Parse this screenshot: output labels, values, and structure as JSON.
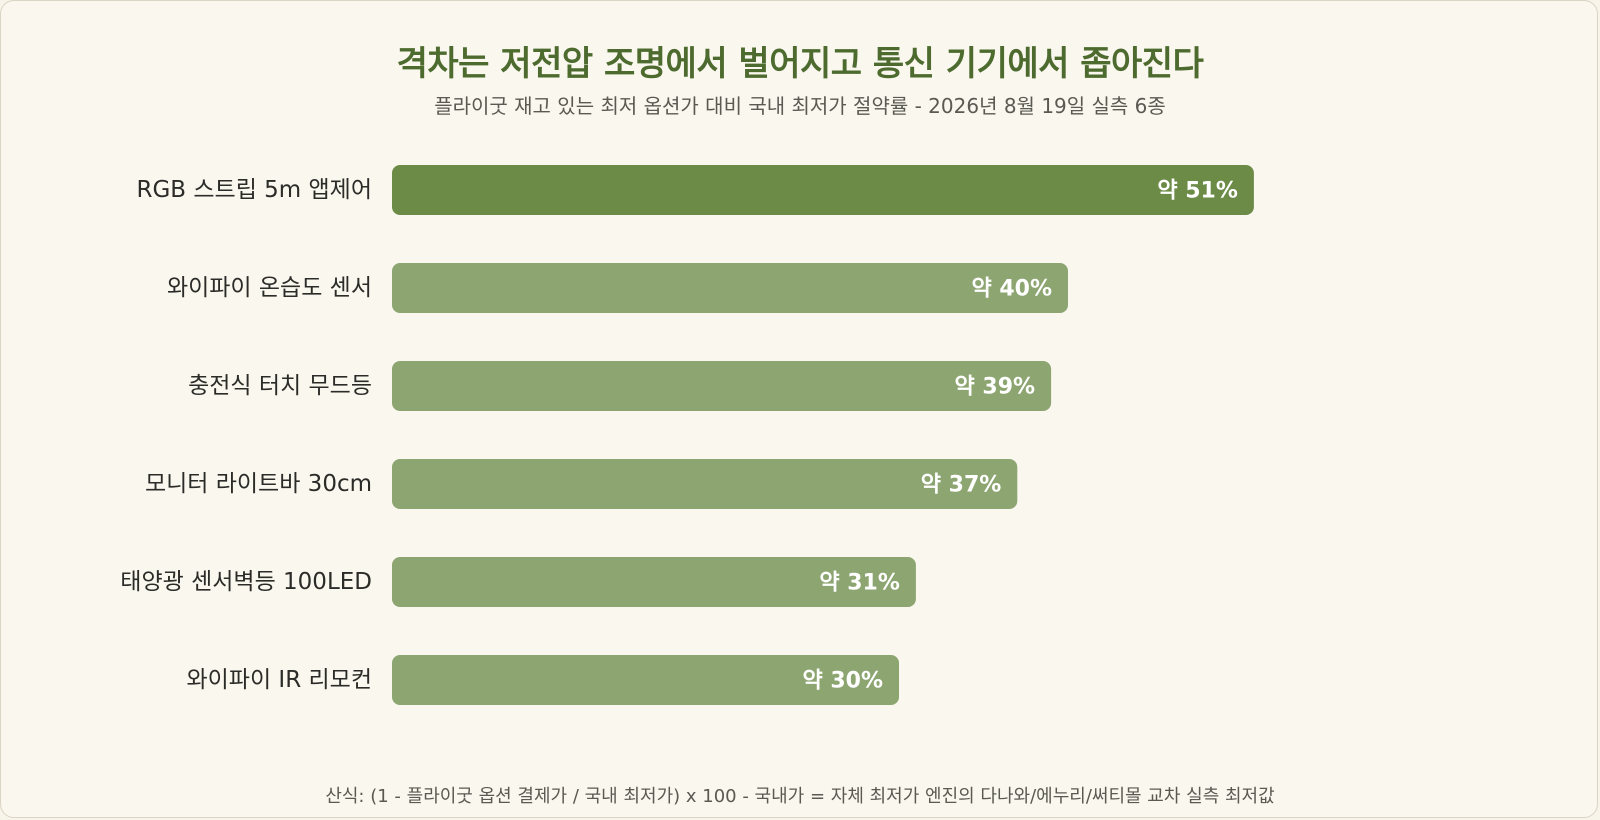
{
  "title": "격차는 저전압 조명에서 벌어지고 통신 기기에서 좁아진다",
  "subtitle": "플라이굿 재고 있는 최저 옵션가 대비 국내 최저가 절약률 - 2026년 8월 19일 실측 6종",
  "footnote": "산식: (1 - 플라이굿 옵션 결제가 / 국내 최저가) x 100 - 국내가 = 자체 최저가 엔진의 다나와/에누리/써티몰 교차 실측 최저값",
  "colors": {
    "highlight": "#6b8b47",
    "normal": "#8ca571",
    "title": "#4e6b2f",
    "background": "#faf7ee"
  },
  "chart_data": {
    "type": "bar",
    "orientation": "horizontal",
    "title": "격차는 저전압 조명에서 벌어지고 통신 기기에서 좁아진다",
    "subtitle": "플라이굿 재고 있는 최저 옵션가 대비 국내 최저가 절약률 - 2026년 8월 19일 실측 6종",
    "xlim": [
      0,
      60
    ],
    "grid": false,
    "categories": [
      "RGB 스트립 5m 앱제어",
      "와이파이 온습도 센서",
      "충전식 터치 무드등",
      "모니터 라이트바 30cm",
      "태양광 센서벽등 100LED",
      "와이파이 IR 리모컨"
    ],
    "values": [
      51,
      40,
      39,
      37,
      31,
      30
    ],
    "value_labels": [
      "약 51%",
      "약 40%",
      "약 39%",
      "약 37%",
      "약 31%",
      "약 30%"
    ],
    "highlighted_index": 0
  }
}
